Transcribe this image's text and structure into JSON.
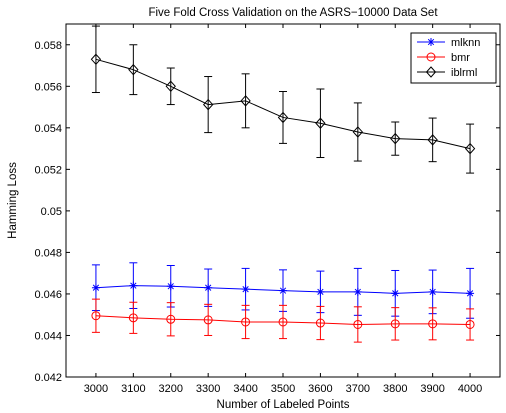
{
  "chart_data": {
    "type": "line",
    "title": "Five Fold Cross Validation on the ASRS−10000 Data Set",
    "xlabel": "Number of Labeled Points",
    "ylabel": "Hamming Loss",
    "x": [
      3000,
      3100,
      3200,
      3300,
      3400,
      3500,
      3600,
      3700,
      3800,
      3900,
      4000
    ],
    "xlim": [
      2920,
      4080
    ],
    "ylim": [
      0.042,
      0.059
    ],
    "xticks": [
      3000,
      3100,
      3200,
      3300,
      3400,
      3500,
      3600,
      3700,
      3800,
      3900,
      4000
    ],
    "yticks": [
      0.042,
      0.044,
      0.046,
      0.048,
      0.05,
      0.052,
      0.054,
      0.056,
      0.058
    ],
    "ytick_labels": [
      "0.042",
      "0.044",
      "0.046",
      "0.048",
      "0.05",
      "0.052",
      "0.054",
      "0.056",
      "0.058"
    ],
    "grid": false,
    "legend_position": "top-right",
    "series": [
      {
        "name": "mlknn",
        "color": "#0000ff",
        "marker": "asterisk",
        "values": [
          0.0463,
          0.0464,
          0.04637,
          0.0463,
          0.04623,
          0.04616,
          0.0461,
          0.0461,
          0.04603,
          0.0461,
          0.04603
        ],
        "errors": [
          0.0011,
          0.0011,
          0.001,
          0.0009,
          0.001,
          0.001,
          0.001,
          0.00113,
          0.0011,
          0.00105,
          0.0012
        ]
      },
      {
        "name": "bmr",
        "color": "#ff0000",
        "marker": "circle",
        "values": [
          0.04495,
          0.04485,
          0.04478,
          0.04475,
          0.04465,
          0.04465,
          0.0446,
          0.04453,
          0.04456,
          0.04456,
          0.04453
        ],
        "errors": [
          0.0008,
          0.00075,
          0.0008,
          0.00075,
          0.0008,
          0.0008,
          0.0008,
          0.00085,
          0.00078,
          0.00077,
          0.00075
        ]
      },
      {
        "name": "iblrml",
        "color": "#000000",
        "marker": "diamond",
        "values": [
          0.0573,
          0.0568,
          0.056,
          0.05512,
          0.0553,
          0.0545,
          0.05422,
          0.0538,
          0.05348,
          0.05342,
          0.053
        ],
        "errors": [
          0.0016,
          0.0012,
          0.00088,
          0.00135,
          0.0013,
          0.00125,
          0.00165,
          0.0014,
          0.0008,
          0.00105,
          0.00118
        ]
      }
    ]
  }
}
